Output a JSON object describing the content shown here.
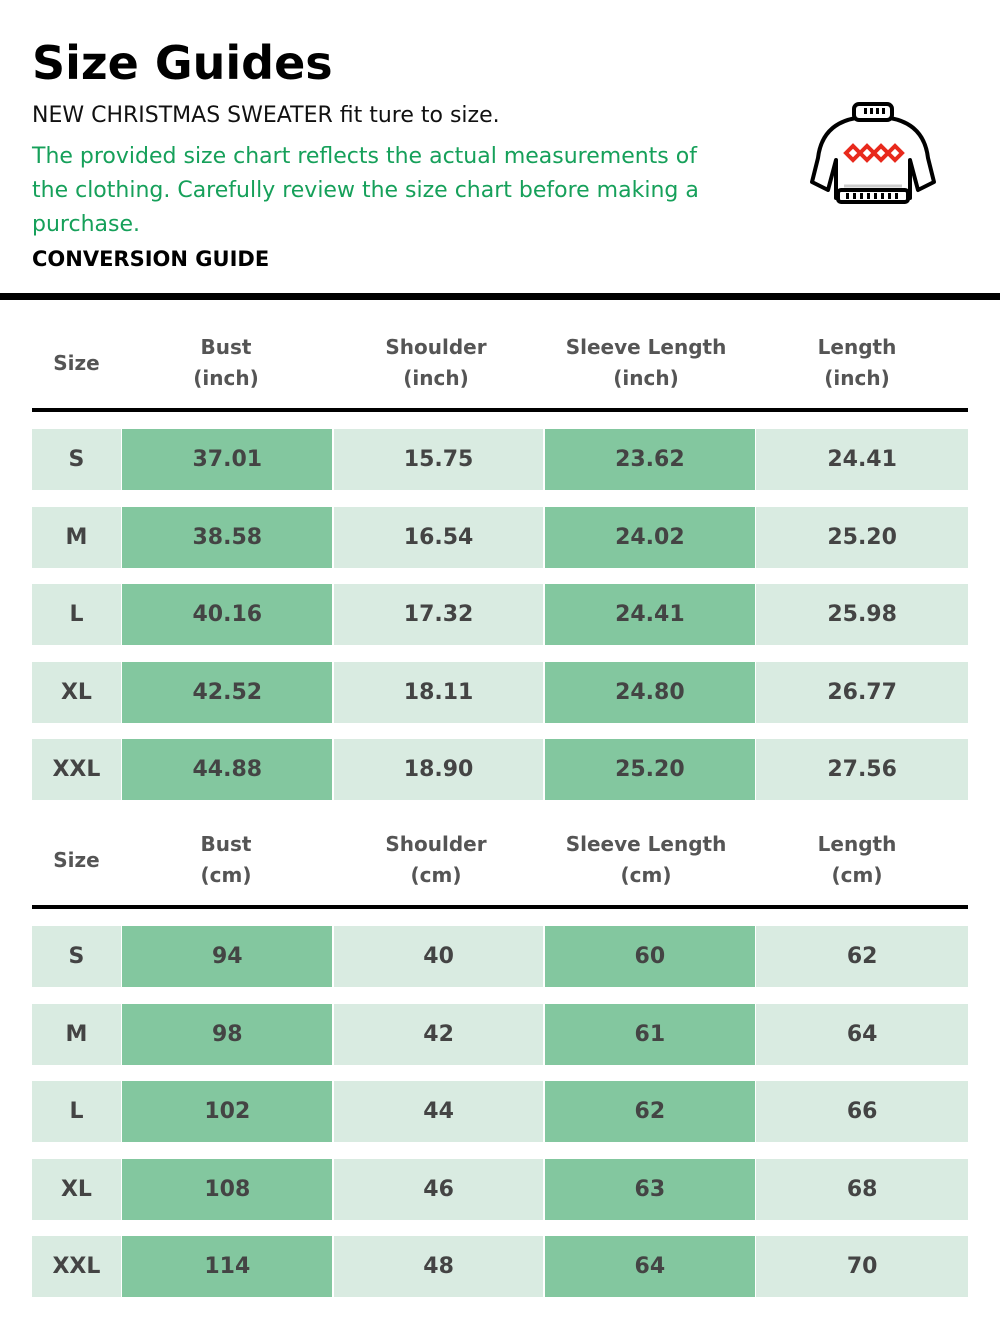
{
  "header": {
    "title": "Size Guides",
    "subtitle": "NEW CHRISTMAS SWEATER fit ture to size.",
    "description": "The provided size chart reflects the actual measurements of the clothing. Carefully review the size chart before making a purchase.",
    "conversion_label": "CONVERSION GUIDE",
    "icon": "sweater-icon"
  },
  "colors": {
    "accent_text": "#16a05a",
    "cell_light": "#d9ebe1",
    "cell_dark": "#83c79f",
    "pattern": "#e8291c"
  },
  "tables": [
    {
      "headers": [
        "Size",
        "Bust\n(inch)",
        "Shoulder\n(inch)",
        "Sleeve Length\n(inch)",
        "Length\n(inch)"
      ],
      "rows": [
        [
          "S",
          "37.01",
          "15.75",
          "23.62",
          "24.41"
        ],
        [
          "M",
          "38.58",
          "16.54",
          "24.02",
          "25.20"
        ],
        [
          "L",
          "40.16",
          "17.32",
          "24.41",
          "25.98"
        ],
        [
          "XL",
          "42.52",
          "18.11",
          "24.80",
          "26.77"
        ],
        [
          "XXL",
          "44.88",
          "18.90",
          "25.20",
          "27.56"
        ]
      ]
    },
    {
      "headers": [
        "Size",
        "Bust\n(cm)",
        "Shoulder\n(cm)",
        "Sleeve Length\n(cm)",
        "Length\n(cm)"
      ],
      "rows": [
        [
          "S",
          "94",
          "40",
          "60",
          "62"
        ],
        [
          "M",
          "98",
          "42",
          "61",
          "64"
        ],
        [
          "L",
          "102",
          "44",
          "62",
          "66"
        ],
        [
          "XL",
          "108",
          "46",
          "63",
          "68"
        ],
        [
          "XXL",
          "114",
          "48",
          "64",
          "70"
        ]
      ]
    }
  ]
}
